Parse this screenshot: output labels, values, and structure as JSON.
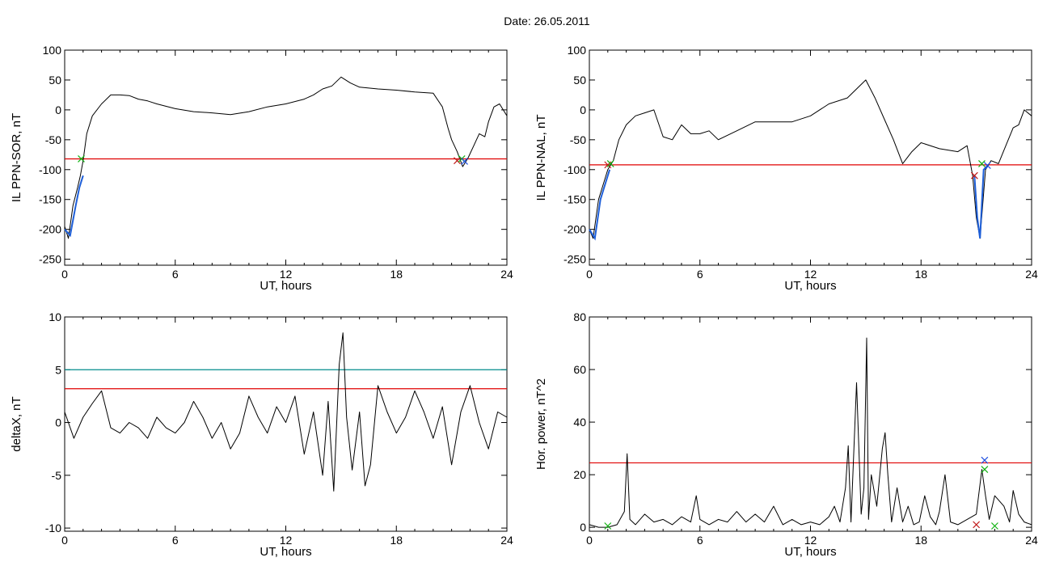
{
  "figure_title": "Date:  26.05.2011",
  "colors": {
    "trace": "#000000",
    "threshold_red": "#e00000",
    "threshold_teal": "#008b8b",
    "highlight_blue": "#1e5fd8",
    "marker_green": "#10b010",
    "marker_red": "#c01818",
    "marker_blue": "#2050e0"
  },
  "chart_data": [
    {
      "id": "il-ppn-sor",
      "type": "line",
      "ylabel": "IL PPN-SOR, nT",
      "xlabel": "UT, hours",
      "xlim": [
        0,
        24
      ],
      "ylim": [
        -260,
        100
      ],
      "xticks": [
        0,
        6,
        12,
        18,
        24
      ],
      "yticks": [
        100,
        50,
        0,
        -50,
        -100,
        -150,
        -200,
        -250
      ],
      "threshold": {
        "value": -82,
        "color": "red"
      },
      "series": [
        {
          "x": [
            0,
            0.2,
            0.45,
            0.7,
            0.85,
            1.0,
            1.2,
            1.5,
            2.0,
            2.5,
            3.0,
            3.5,
            4.0,
            4.5,
            5.0,
            6.0,
            7.0,
            8.0,
            9.0,
            10.0,
            11.0,
            12.0,
            13.0,
            13.5,
            14.0,
            14.5,
            15.0,
            15.5,
            16.0,
            17.0,
            18.0,
            19.0,
            20.0,
            20.5,
            20.8,
            21.0,
            21.3,
            21.6,
            21.9,
            22.2,
            22.5,
            22.8,
            23.0,
            23.3,
            23.6,
            24.0
          ],
          "y": [
            -195,
            -215,
            -160,
            -130,
            -110,
            -85,
            -40,
            -10,
            10,
            25,
            25,
            24,
            18,
            15,
            10,
            2,
            -3,
            -5,
            -8,
            -3,
            5,
            10,
            18,
            25,
            35,
            40,
            55,
            45,
            38,
            35,
            33,
            30,
            28,
            5,
            -30,
            -50,
            -70,
            -95,
            -80,
            -60,
            -40,
            -45,
            -20,
            5,
            10,
            -10
          ]
        }
      ],
      "highlight": {
        "x": [
          0.0,
          0.3,
          0.6,
          0.8,
          1.0
        ],
        "y": [
          -200,
          -210,
          -160,
          -130,
          -110
        ]
      },
      "markers": [
        {
          "x": 0.9,
          "y": -82,
          "color": "green"
        },
        {
          "x": 21.3,
          "y": -85,
          "color": "red"
        },
        {
          "x": 21.55,
          "y": -82,
          "color": "green"
        },
        {
          "x": 21.7,
          "y": -86,
          "color": "blue"
        }
      ]
    },
    {
      "id": "il-ppn-nal",
      "type": "line",
      "ylabel": "IL PPN-NAL, nT",
      "xlabel": "UT, hours",
      "xlim": [
        0,
        24
      ],
      "ylim": [
        -260,
        100
      ],
      "xticks": [
        0,
        6,
        12,
        18,
        24
      ],
      "yticks": [
        100,
        50,
        0,
        -50,
        -100,
        -150,
        -200,
        -250
      ],
      "threshold": {
        "value": -92,
        "color": "red"
      },
      "series": [
        {
          "x": [
            0,
            0.2,
            0.5,
            0.8,
            1.0,
            1.3,
            1.6,
            2.0,
            2.5,
            3.0,
            3.5,
            4.0,
            4.5,
            5.0,
            5.5,
            6.0,
            6.5,
            7.0,
            8.0,
            9.0,
            10.0,
            11.0,
            12.0,
            13.0,
            14.0,
            14.5,
            15.0,
            15.5,
            16.0,
            16.5,
            17.0,
            17.5,
            18.0,
            19.0,
            20.0,
            20.5,
            20.8,
            21.0,
            21.2,
            21.5,
            21.8,
            22.2,
            22.6,
            23.0,
            23.3,
            23.6,
            24.0
          ],
          "y": [
            -200,
            -215,
            -150,
            -120,
            -100,
            -85,
            -50,
            -25,
            -10,
            -5,
            0,
            -45,
            -50,
            -25,
            -40,
            -40,
            -35,
            -50,
            -35,
            -20,
            -20,
            -20,
            -10,
            10,
            20,
            35,
            50,
            20,
            -15,
            -50,
            -90,
            -70,
            -55,
            -65,
            -70,
            -60,
            -110,
            -180,
            -215,
            -100,
            -85,
            -90,
            -60,
            -30,
            -25,
            0,
            -10
          ]
        }
      ],
      "highlight": {
        "x": [
          0.0,
          0.3,
          0.6,
          0.9,
          1.1
        ],
        "y": [
          -200,
          -215,
          -150,
          -120,
          -100
        ]
      },
      "highlight2": {
        "x": [
          20.9,
          21.05,
          21.2,
          21.4,
          21.6
        ],
        "y": [
          -110,
          -180,
          -215,
          -100,
          -95
        ]
      },
      "markers": [
        {
          "x": 1.0,
          "y": -92,
          "color": "red"
        },
        {
          "x": 1.15,
          "y": -90,
          "color": "green"
        },
        {
          "x": 20.9,
          "y": -110,
          "color": "red"
        },
        {
          "x": 21.3,
          "y": -90,
          "color": "green"
        },
        {
          "x": 21.6,
          "y": -93,
          "color": "blue"
        }
      ]
    },
    {
      "id": "delta-x",
      "type": "line",
      "ylabel": "deltaX, nT",
      "xlabel": "UT, hours",
      "xlim": [
        0,
        24
      ],
      "ylim": [
        -10.3,
        10
      ],
      "xticks": [
        0,
        6,
        12,
        18,
        24
      ],
      "yticks": [
        10,
        5,
        0,
        -5,
        -10
      ],
      "threshold": {
        "value": 3.2,
        "color": "red"
      },
      "threshold2": {
        "value": 5.0,
        "color": "teal"
      },
      "series": [
        {
          "x": [
            0,
            0.5,
            1.0,
            1.5,
            2.0,
            2.5,
            3.0,
            3.5,
            4.0,
            4.5,
            5.0,
            5.5,
            6.0,
            6.5,
            7.0,
            7.5,
            8.0,
            8.5,
            9.0,
            9.5,
            10.0,
            10.5,
            11.0,
            11.5,
            12.0,
            12.5,
            13.0,
            13.5,
            14.0,
            14.3,
            14.6,
            14.9,
            15.1,
            15.3,
            15.6,
            16.0,
            16.3,
            16.6,
            17.0,
            17.5,
            18.0,
            18.5,
            19.0,
            19.5,
            20.0,
            20.5,
            21.0,
            21.5,
            22.0,
            22.5,
            23.0,
            23.5,
            24.0
          ],
          "y": [
            1.0,
            -1.5,
            0.5,
            1.8,
            3.0,
            -0.5,
            -1.0,
            0.0,
            -0.5,
            -1.5,
            0.5,
            -0.5,
            -1.0,
            0.0,
            2.0,
            0.5,
            -1.5,
            0.0,
            -2.5,
            -1.0,
            2.5,
            0.5,
            -1.0,
            1.5,
            0.0,
            2.5,
            -3.0,
            1.0,
            -5.0,
            2.0,
            -6.5,
            5.5,
            8.5,
            0.5,
            -4.5,
            1.0,
            -6.0,
            -4.0,
            3.5,
            1.0,
            -1.0,
            0.5,
            3.0,
            1.0,
            -1.5,
            1.5,
            -4.0,
            1.0,
            3.5,
            0.0,
            -2.5,
            1.0,
            0.5
          ]
        }
      ]
    },
    {
      "id": "hor-power",
      "type": "line",
      "ylabel": "Hor. power, nT^2",
      "xlabel": "UT, hours",
      "xlim": [
        0,
        24
      ],
      "ylim": [
        -1.5,
        80
      ],
      "xticks": [
        0,
        6,
        12,
        18,
        24
      ],
      "yticks": [
        80,
        60,
        40,
        20,
        0
      ],
      "threshold": {
        "value": 24.5,
        "color": "red"
      },
      "series": [
        {
          "x": [
            0,
            0.5,
            1.0,
            1.5,
            1.9,
            2.05,
            2.2,
            2.5,
            3.0,
            3.5,
            4.0,
            4.5,
            5.0,
            5.5,
            5.8,
            6.0,
            6.5,
            7.0,
            7.5,
            8.0,
            8.5,
            9.0,
            9.5,
            10.0,
            10.5,
            11.0,
            11.5,
            12.0,
            12.5,
            13.0,
            13.3,
            13.6,
            13.9,
            14.05,
            14.2,
            14.5,
            14.75,
            14.9,
            15.05,
            15.15,
            15.3,
            15.6,
            15.9,
            16.05,
            16.2,
            16.4,
            16.7,
            17.0,
            17.3,
            17.6,
            17.9,
            18.2,
            18.5,
            18.8,
            19.0,
            19.3,
            19.6,
            20.0,
            20.5,
            21.0,
            21.3,
            21.5,
            21.7,
            22.0,
            22.5,
            22.8,
            23.0,
            23.3,
            23.6,
            24.0
          ],
          "y": [
            1,
            0,
            0,
            1,
            6,
            28,
            3,
            1,
            5,
            2,
            3,
            1,
            4,
            2,
            12,
            3,
            1,
            3,
            2,
            6,
            2,
            5,
            2,
            8,
            1,
            3,
            1,
            2,
            1,
            4,
            8,
            2,
            15,
            31,
            2,
            55,
            5,
            15,
            72,
            3,
            20,
            8,
            30,
            36,
            20,
            2,
            15,
            2,
            8,
            1,
            2,
            12,
            4,
            1,
            6,
            20,
            2,
            1,
            3,
            5,
            22,
            12,
            3,
            12,
            8,
            2,
            14,
            5,
            2,
            1
          ]
        }
      ],
      "markers": [
        {
          "x": 21.45,
          "y": 25.5,
          "color": "blue"
        },
        {
          "x": 21.45,
          "y": 22.0,
          "color": "green"
        },
        {
          "x": 21.0,
          "y": 1.0,
          "color": "red"
        },
        {
          "x": 22.0,
          "y": 0.5,
          "color": "green"
        },
        {
          "x": 1.0,
          "y": 0.5,
          "color": "green"
        }
      ]
    }
  ]
}
